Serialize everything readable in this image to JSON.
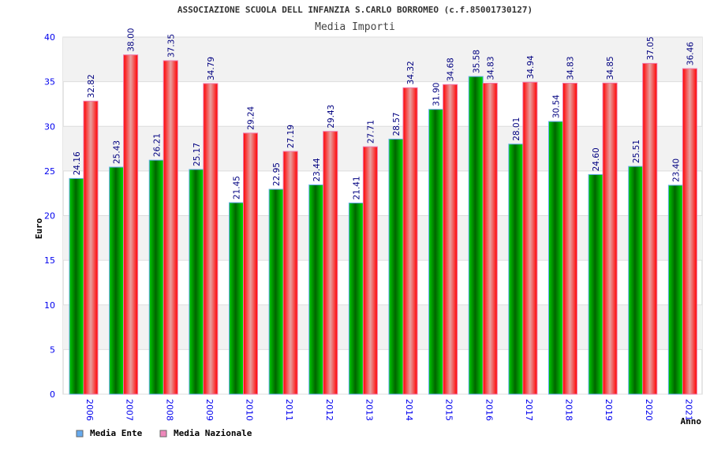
{
  "chart_data": {
    "type": "bar",
    "title": "ASSOCIAZIONE SCUOLA DELL INFANZIA S.CARLO BORROMEO (c.f.85001730127)",
    "subtitle": "Media Importi",
    "xlabel": "Anno",
    "ylabel": "Euro",
    "ylim": [
      0,
      40
    ],
    "yticks": [
      "0",
      "5",
      "10",
      "15",
      "20",
      "25",
      "30",
      "35",
      "40"
    ],
    "grid": true,
    "legend_position": "bottom-left",
    "categories": [
      "2006",
      "2007",
      "2008",
      "2009",
      "2010",
      "2011",
      "2012",
      "2013",
      "2014",
      "2015",
      "2016",
      "2017",
      "2018",
      "2019",
      "2020",
      "2021"
    ],
    "series": [
      {
        "name": "Media Ente",
        "color": "#00aa00",
        "legend_color": "#66aaee",
        "values": [
          24.16,
          25.43,
          26.21,
          25.17,
          21.45,
          22.95,
          23.44,
          21.41,
          28.57,
          31.9,
          35.58,
          28.01,
          30.54,
          24.6,
          25.51,
          23.4
        ],
        "labels": [
          "24.16",
          "25.43",
          "26.21",
          "25.17",
          "21.45",
          "22.95",
          "23.44",
          "21.41",
          "28.57",
          "31.90",
          "35.58",
          "28.01",
          "30.54",
          "24.60",
          "25.51",
          "23.40"
        ]
      },
      {
        "name": "Media Nazionale",
        "color": "#ee0000",
        "legend_color": "#ee88bb",
        "values": [
          32.82,
          38.0,
          37.35,
          34.79,
          29.24,
          27.19,
          29.43,
          27.71,
          34.32,
          34.68,
          34.83,
          34.94,
          34.83,
          34.85,
          37.05,
          36.46
        ],
        "labels": [
          "32.82",
          "38.00",
          "37.35",
          "34.79",
          "29.24",
          "27.19",
          "29.43",
          "27.71",
          "34.32",
          "34.68",
          "34.83",
          "34.94",
          "34.83",
          "34.85",
          "37.05",
          "36.46"
        ]
      }
    ]
  }
}
